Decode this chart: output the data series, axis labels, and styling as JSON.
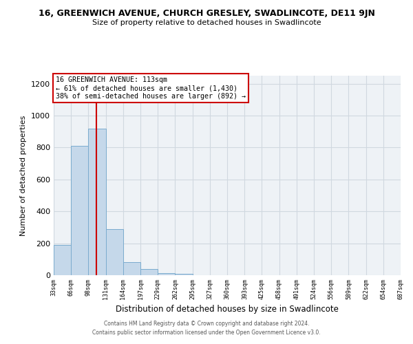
{
  "title": "16, GREENWICH AVENUE, CHURCH GRESLEY, SWADLINCOTE, DE11 9JN",
  "subtitle": "Size of property relative to detached houses in Swadlincote",
  "xlabel": "Distribution of detached houses by size in Swadlincote",
  "ylabel": "Number of detached properties",
  "bin_edges": [
    33,
    66,
    98,
    131,
    164,
    197,
    229,
    262,
    295,
    327,
    360,
    393,
    425,
    458,
    491,
    524,
    556,
    589,
    622,
    654,
    687
  ],
  "bar_heights": [
    190,
    810,
    920,
    290,
    80,
    40,
    15,
    10,
    0,
    0,
    0,
    0,
    0,
    0,
    0,
    0,
    0,
    0,
    0,
    0
  ],
  "bar_color": "#c5d8ea",
  "bar_edge_color": "#7aabce",
  "vline_x": 113,
  "vline_color": "#cc0000",
  "ylim": [
    0,
    1250
  ],
  "yticks": [
    0,
    200,
    400,
    600,
    800,
    1000,
    1200
  ],
  "annotation_title": "16 GREENWICH AVENUE: 113sqm",
  "annotation_line1": "← 61% of detached houses are smaller (1,430)",
  "annotation_line2": "38% of semi-detached houses are larger (892) →",
  "annotation_box_color": "#cc0000",
  "footer_line1": "Contains HM Land Registry data © Crown copyright and database right 2024.",
  "footer_line2": "Contains public sector information licensed under the Open Government Licence v3.0.",
  "grid_color": "#d0d8e0",
  "background_color": "#eef2f6"
}
